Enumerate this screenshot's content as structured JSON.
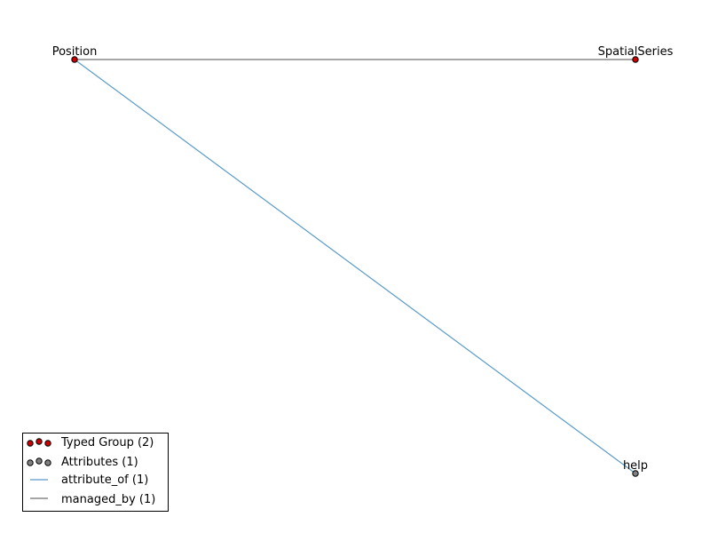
{
  "graph": {
    "nodes": [
      {
        "id": "position",
        "label": "Position",
        "type": "typed_group"
      },
      {
        "id": "spatialseries",
        "label": "SpatialSeries",
        "type": "typed_group"
      },
      {
        "id": "help",
        "label": "help",
        "type": "attribute"
      }
    ],
    "edges": [
      {
        "id": "e1",
        "source": "position",
        "target": "spatialseries",
        "relation": "managed_by"
      },
      {
        "id": "e2",
        "source": "position",
        "target": "help",
        "relation": "attribute_of"
      }
    ]
  },
  "legend": {
    "items": [
      {
        "id": "typed-group",
        "label": "Typed Group (2)",
        "kind": "node",
        "color": "#cc0000"
      },
      {
        "id": "attributes",
        "label": "Attributes (1)",
        "kind": "node",
        "color": "#808080"
      },
      {
        "id": "attribute-of",
        "label": "attribute_of (1)",
        "kind": "edge",
        "color": "#5b9bc9"
      },
      {
        "id": "managed-by",
        "label": "managed_by (1)",
        "kind": "edge",
        "color": "#707070"
      }
    ]
  },
  "colors": {
    "typed_group": "#cc0000",
    "attribute": "#808080",
    "attribute_of": "#5b9bc9",
    "managed_by": "#707070",
    "node_stroke": "#000000"
  }
}
